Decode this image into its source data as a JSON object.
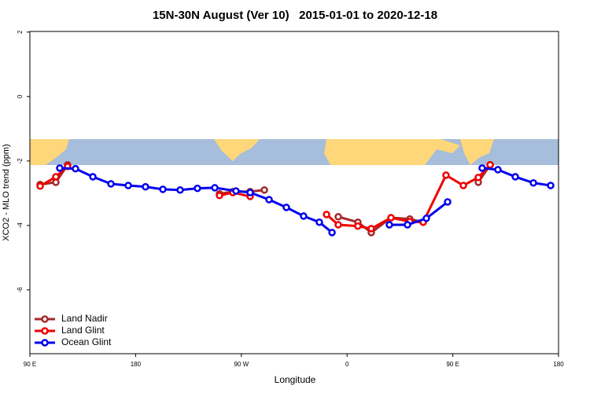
{
  "chart_data": {
    "type": "line",
    "title": "15N-30N August (Ver 10)   2015-01-01 to 2020-12-18",
    "xlabel": "Longitude",
    "ylabel": "XCO2 - MLO trend (ppm)",
    "xlim": [
      90,
      540
    ],
    "ylim": [
      -7.98,
      2.02
    ],
    "xticks": [
      {
        "value": 90,
        "label": "90 E"
      },
      180,
      {
        "value": 270,
        "label": "90 W"
      },
      {
        "value": 360,
        "label": "0"
      },
      {
        "value": 450,
        "label": "90 E"
      },
      {
        "value": 540,
        "label": "180"
      }
    ],
    "yticks": [
      2,
      0,
      -2,
      -4,
      -6
    ],
    "legend": "bottom-left",
    "series": [
      {
        "name": "Land Nadir",
        "color": "#a52a2a",
        "x": [
          98.7,
          112.1,
          122.1,
          null,
          251.4,
          262.8,
          277.5,
          289.6,
          null,
          352.5,
          369.2,
          380.6,
          397.4,
          413.4,
          424.8,
          null,
          471.7,
          481.8
        ],
        "values": [
          -2.73,
          -2.66,
          -2.12,
          null,
          -3.02,
          -2.95,
          -2.95,
          -2.9,
          null,
          -3.73,
          -3.9,
          -4.22,
          -3.76,
          -3.8,
          -3.9,
          null,
          -2.66,
          -2.12
        ]
      },
      {
        "name": "Land Glint",
        "color": "#ee0000",
        "x": [
          98.7,
          112.1,
          122.1,
          null,
          251.4,
          262.8,
          277.5,
          null,
          342.5,
          352.5,
          369.2,
          380.6,
          397.4,
          413.4,
          424.8,
          444.2,
          459,
          471.7,
          481.8
        ],
        "values": [
          -2.78,
          -2.49,
          -2.17,
          null,
          -3.07,
          -2.98,
          -3.1,
          null,
          -3.66,
          -3.98,
          -4.02,
          -4.1,
          -3.76,
          -3.88,
          -3.9,
          -2.44,
          -2.76,
          -2.51,
          -2.12
        ]
      },
      {
        "name": "Ocean Glint",
        "color": "#0000ee",
        "x": [
          115.4,
          128.8,
          143.6,
          159,
          173.7,
          188.4,
          203.2,
          217.9,
          232.6,
          247.4,
          265.4,
          277.5,
          293.6,
          308.3,
          323,
          336.4,
          347.2,
          null,
          396,
          411.4,
          427.5,
          445.6,
          null,
          475,
          488.4,
          503.2,
          518.6,
          533.3
        ],
        "values": [
          -2.22,
          -2.24,
          -2.49,
          -2.71,
          -2.76,
          -2.8,
          -2.88,
          -2.9,
          -2.85,
          -2.83,
          -2.93,
          -2.98,
          -3.2,
          -3.44,
          -3.71,
          -3.9,
          -4.22,
          null,
          -3.98,
          -3.98,
          -3.78,
          -3.27,
          null,
          -2.22,
          -2.27,
          -2.49,
          -2.68,
          -2.76
        ]
      }
    ]
  }
}
